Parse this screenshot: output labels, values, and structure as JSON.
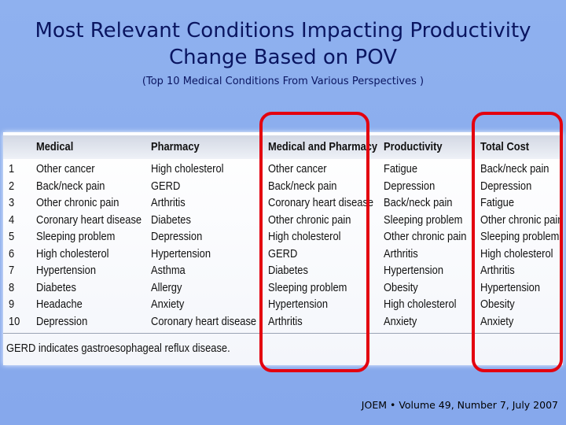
{
  "title": "Most Relevant Conditions Impacting Productivity Change Based on POV",
  "subtitle": "(Top 10 Medical Conditions From Various Perspectives )",
  "table": {
    "columns": [
      "Medical",
      "Pharmacy",
      "Medical and Pharmacy",
      "Productivity",
      "Total Cost"
    ],
    "ranks": [
      "1",
      "2",
      "3",
      "4",
      "5",
      "6",
      "7",
      "8",
      "9",
      "10"
    ],
    "rows": [
      [
        "Other cancer",
        "High cholesterol",
        "Other cancer",
        "Fatigue",
        "Back/neck pain"
      ],
      [
        "Back/neck pain",
        "GERD",
        "Back/neck pain",
        "Depression",
        "Depression"
      ],
      [
        "Other chronic pain",
        "Arthritis",
        "Coronary heart disease",
        "Back/neck pain",
        "Fatigue"
      ],
      [
        "Coronary heart disease",
        "Diabetes",
        "Other chronic pain",
        "Sleeping problem",
        "Other chronic pain"
      ],
      [
        "Sleeping problem",
        "Depression",
        "High cholesterol",
        "Other chronic pain",
        "Sleeping problem"
      ],
      [
        "High cholesterol",
        "Hypertension",
        "GERD",
        "Arthritis",
        "High cholesterol"
      ],
      [
        "Hypertension",
        "Asthma",
        "Diabetes",
        "Hypertension",
        "Arthritis"
      ],
      [
        "Diabetes",
        "Allergy",
        "Sleeping problem",
        "Obesity",
        "Hypertension"
      ],
      [
        "Headache",
        "Anxiety",
        "Hypertension",
        "High cholesterol",
        "Obesity"
      ],
      [
        "Depression",
        "Coronary heart disease",
        "Arthritis",
        "Anxiety",
        "Anxiety"
      ]
    ],
    "footnote": "GERD indicates gastroesophageal reflux disease."
  },
  "highlight_color": "#e3000f",
  "citation": "JOEM • Volume 49, Number 7, July 2007"
}
